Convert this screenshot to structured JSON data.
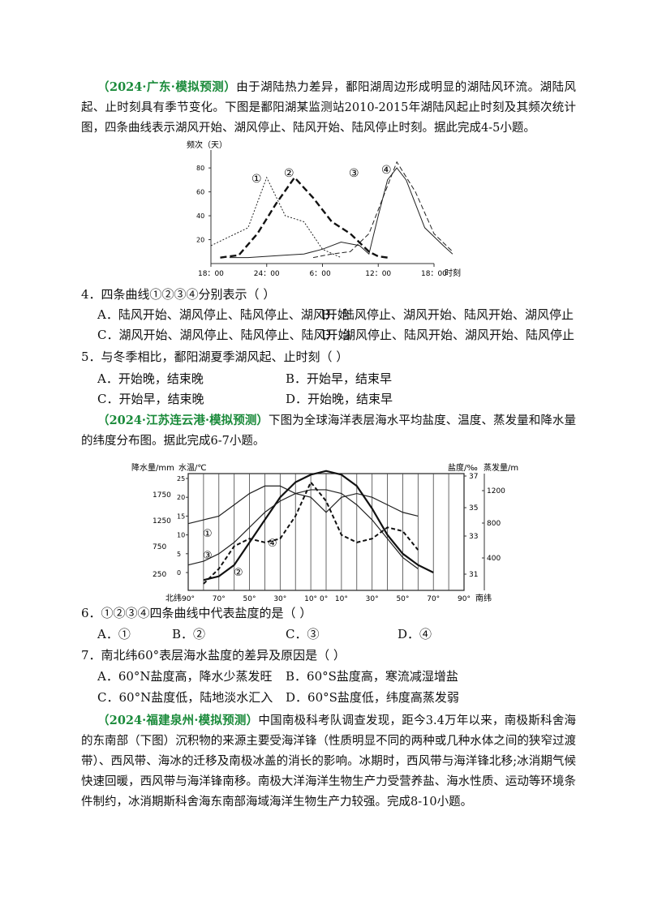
{
  "intro1": {
    "source": "（2024·广东·模拟预测）",
    "text": "由于湖陆热力差异，鄱阳湖周边形成明显的湖陆风环流。湖陆风起、止时刻具有季节变化。下图是鄱阳湖某监测站2010-2015年湖陆风起止时刻及其频次统计图，四条曲线表示湖风开始、湖风停止、陆风开始、陆风停止时刻。据此完成4-5小题。"
  },
  "chart1": {
    "ylabel": "频次（天）",
    "xlabel": "时刻",
    "yticks": [
      "20",
      "40",
      "60",
      "80"
    ],
    "xticks": [
      "18：00",
      "24：00",
      "6：00",
      "12：00",
      "18：00"
    ],
    "curve_labels": [
      "①",
      "②",
      "③",
      "④"
    ]
  },
  "chart_data": [
    {
      "type": "line",
      "ylabel": "频次（天）",
      "xlabel": "时刻",
      "ylim": [
        0,
        95
      ],
      "x_ticks": [
        "18:00",
        "24:00",
        "6:00",
        "12:00",
        "18:00"
      ],
      "series": [
        {
          "name": "①",
          "x": [
            18,
            22,
            24,
            26,
            28,
            30,
            32
          ],
          "y": [
            15,
            30,
            72,
            40,
            35,
            12,
            5
          ]
        },
        {
          "name": "②",
          "x": [
            19,
            21,
            23,
            25,
            27,
            29,
            31,
            33,
            35,
            36,
            37
          ],
          "y": [
            5,
            7,
            25,
            50,
            72,
            55,
            35,
            25,
            10,
            6,
            5
          ]
        },
        {
          "name": "③",
          "x": [
            20,
            22,
            24,
            26,
            28,
            30,
            32,
            34,
            35,
            36,
            37,
            38,
            39,
            41,
            43,
            44
          ],
          "y": [
            5,
            5,
            6,
            7,
            8,
            12,
            18,
            15,
            8,
            40,
            70,
            80,
            70,
            30,
            15,
            8
          ]
        },
        {
          "name": "④",
          "x": [
            29,
            31,
            33,
            35,
            36,
            37,
            38,
            40,
            42,
            44
          ],
          "y": [
            5,
            8,
            10,
            25,
            45,
            65,
            85,
            60,
            25,
            10
          ]
        }
      ]
    },
    {
      "type": "line",
      "x_ticks": [
        "90°",
        "70°",
        "50°",
        "30°",
        "10°",
        "0°",
        "10°",
        "30°",
        "50°",
        "70°",
        "90°"
      ],
      "x_labels": [
        "北纬",
        "南纬"
      ],
      "axis_titles": [
        "降水量/mm",
        "水温/℃",
        "盐度/‰",
        "蒸发量/mm"
      ],
      "left_ticks_precip": [
        "250",
        "750",
        "1250",
        "1750"
      ],
      "left_ticks_temp": [
        "0",
        "5",
        "10",
        "15",
        "20",
        "25"
      ],
      "right_ticks_salinity": [
        "31",
        "33",
        "35",
        "37"
      ],
      "right_ticks_evap": [
        "400",
        "800",
        "1200"
      ],
      "series": [
        {
          "name": "①",
          "lat": [
            90,
            80,
            70,
            60,
            50,
            40,
            30,
            20,
            10,
            0,
            -10,
            -20,
            -30,
            -40,
            -50,
            -60
          ],
          "value_temp_axis": [
            13,
            14,
            15,
            18,
            21,
            23,
            23,
            21,
            20,
            16,
            20,
            21,
            20,
            18,
            16,
            15
          ]
        },
        {
          "name": "②",
          "lat": [
            80,
            70,
            60,
            50,
            40,
            30,
            20,
            10,
            0,
            -10,
            -20,
            -30,
            -40,
            -50,
            -60,
            -70
          ],
          "value_temp_axis": [
            -2,
            -1,
            2,
            8,
            14,
            20,
            24,
            26,
            27,
            26,
            23,
            17,
            10,
            5,
            2,
            0
          ]
        },
        {
          "name": "③",
          "lat": [
            90,
            80,
            70,
            60,
            50,
            40,
            30,
            20,
            10,
            0,
            -10,
            -20,
            -30,
            -40,
            -50,
            -60
          ],
          "value_temp_axis": [
            2,
            3,
            5,
            8,
            12,
            16,
            19,
            21,
            22,
            22,
            21,
            18,
            14,
            9,
            4,
            1
          ]
        },
        {
          "name": "④",
          "lat": [
            80,
            70,
            60,
            50,
            40,
            30,
            20,
            10,
            0,
            -10,
            -20,
            -30,
            -40,
            -50,
            -60
          ],
          "value_temp_axis": [
            -3,
            1,
            7,
            9,
            8,
            9,
            15,
            24,
            19,
            10,
            8,
            9,
            12,
            11,
            6
          ]
        }
      ]
    }
  ],
  "q4": {
    "stem": "4．四条曲线①②③④分别表示（    ）",
    "options": [
      "A．陆风开始、湖风停止、陆风停止、湖风开始",
      "B．陆风停止、湖风开始、陆风开始、湖风停止",
      "C．湖风开始、湖风停止、陆风停止、陆风开始",
      "D．湖风停止、陆风开始、湖风开始、陆风停止"
    ]
  },
  "q5": {
    "stem": "5．与冬季相比，鄱阳湖夏季湖风起、止时刻（    ）",
    "options": [
      "A．开始晚，结束晚",
      "B．开始早，结束早",
      "C．开始早，结束晚",
      "D．开始晚，结束早"
    ]
  },
  "intro2": {
    "source": "（2024·江苏连云港·模拟预测）",
    "text": "下图为全球海洋表层海水平均盐度、温度、蒸发量和降水量的纬度分布图。据此完成6-7小题。"
  },
  "chart2": {
    "precip_title": "降水量/mm",
    "temp_title": "水温/℃",
    "salinity_title": "盐度/‰",
    "evap_title": "蒸发量/mm",
    "north_label": "北纬",
    "south_label": "南纬",
    "lat_ticks": [
      "90°",
      "70°",
      "50°",
      "30°",
      "10°",
      "0°",
      "10°",
      "30°",
      "50°",
      "70°",
      "90°"
    ],
    "precip_ticks": [
      "250",
      "750",
      "1250",
      "1750"
    ],
    "temp_ticks": [
      "0",
      "5",
      "10",
      "15",
      "20",
      "25"
    ],
    "sal_ticks": [
      "31",
      "33",
      "35",
      "37"
    ],
    "evap_ticks": [
      "400",
      "800",
      "1200"
    ],
    "curve_labels": [
      "①",
      "②",
      "③",
      "④"
    ]
  },
  "q6": {
    "stem": "6．①②③④四条曲线中代表盐度的是（    ）",
    "options": [
      "A．①",
      "B．②",
      "C．③",
      "D．④"
    ]
  },
  "q7": {
    "stem": "7．南北纬60°表层海水盐度的差异及原因是（    ）",
    "options": [
      "A．60°N盐度高，降水少蒸发旺",
      "B．60°S盐度高，寒流减湿增盐",
      "C．60°N盐度低，陆地淡水汇入",
      "D．60°S盐度低，纬度高蒸发弱"
    ]
  },
  "intro3": {
    "source": "（2024·福建泉州·模拟预测）",
    "text": "中国南极科考队调查发现，距今3.4万年以来，南极斯科舍海的东南部（下图）沉积物的来源主要受海洋锋（性质明显不同的两种或几种水体之间的狭窄过渡带）、西风带、海冰的迁移及南极冰盖的消长的影响。冰期时，西风带与海洋锋北移;冰消期气候快速回暖，西风带与海洋锋南移。南极大洋海洋生物生产力受营养盐、海水性质、运动等环境条件制约，冰消期斯科舍海东南部海域海洋生物生产力较强。完成8-10小题。"
  }
}
